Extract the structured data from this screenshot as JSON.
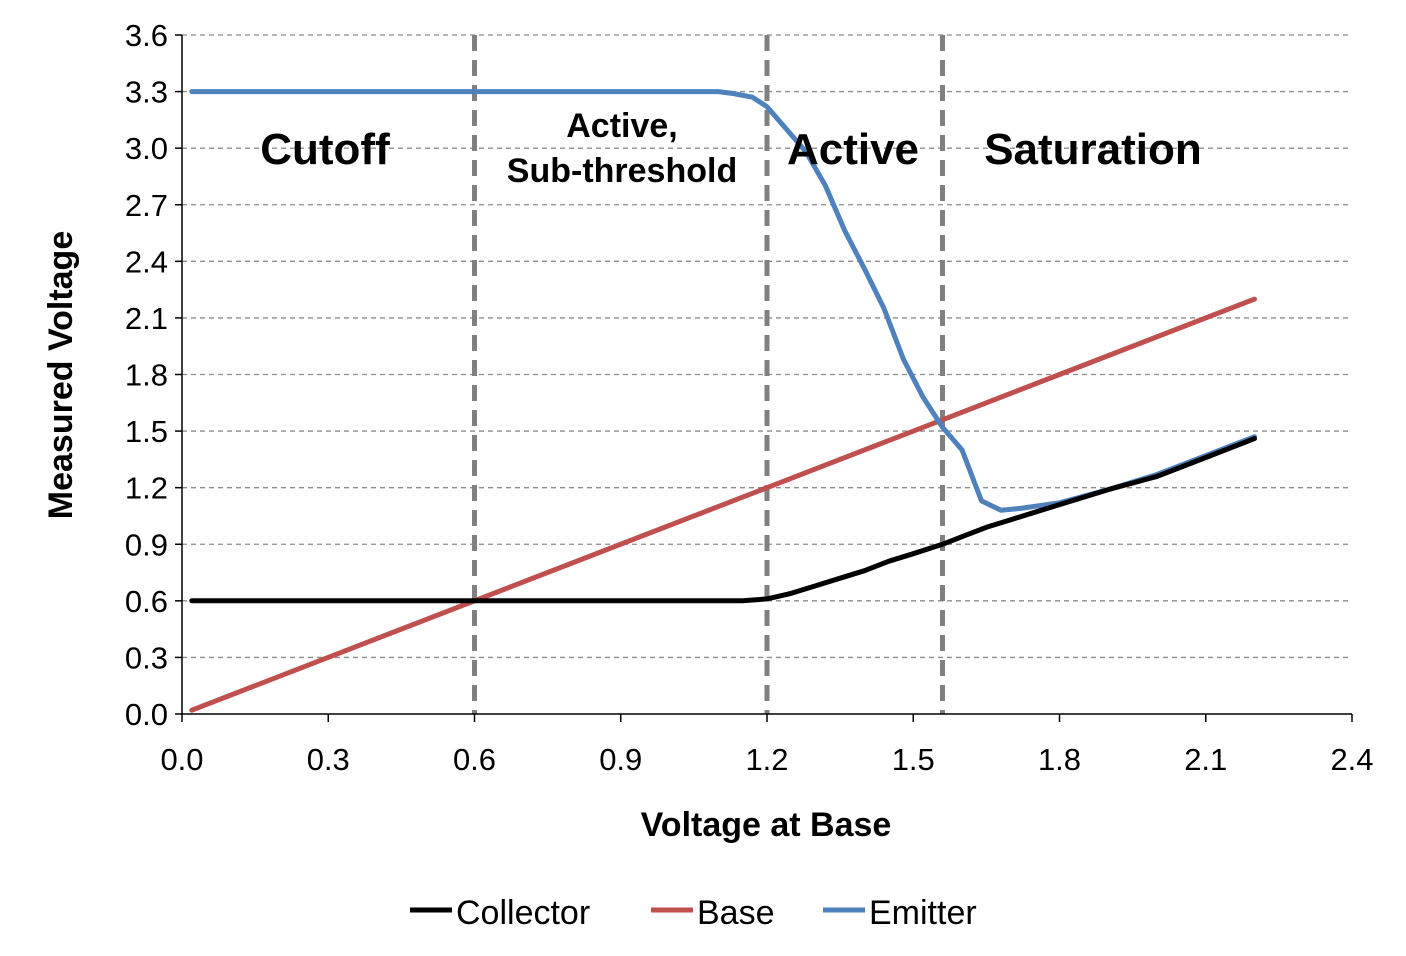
{
  "chart_data": {
    "type": "line",
    "title": "",
    "xlabel": "Voltage at Base",
    "ylabel": "Measured Voltage",
    "xlim": [
      0,
      2.4
    ],
    "ylim": [
      0,
      3.6
    ],
    "x_ticks": [
      "0.0",
      "0.3",
      "0.6",
      "0.9",
      "1.2",
      "1.5",
      "1.8",
      "2.1",
      "2.4"
    ],
    "y_ticks": [
      "0.0",
      "0.3",
      "0.6",
      "0.9",
      "1.2",
      "1.5",
      "1.8",
      "2.1",
      "2.4",
      "2.7",
      "3.0",
      "3.3",
      "3.6"
    ],
    "grid": "horizontal dashed",
    "legend_position": "bottom",
    "colors": {
      "Collector": "#000000",
      "Base": "#c0504d",
      "Emitter": "#4f81bd",
      "boundary": "#808080"
    },
    "series": [
      {
        "name": "Collector",
        "x": [
          0.02,
          0.3,
          0.6,
          0.9,
          1.15,
          1.2,
          1.25,
          1.3,
          1.35,
          1.4,
          1.45,
          1.5,
          1.56,
          1.6,
          1.65,
          1.7,
          1.8,
          1.9,
          2.0,
          2.1,
          2.2
        ],
        "y": [
          0.6,
          0.6,
          0.6,
          0.6,
          0.6,
          0.61,
          0.64,
          0.68,
          0.72,
          0.76,
          0.81,
          0.85,
          0.9,
          0.94,
          0.99,
          1.03,
          1.11,
          1.19,
          1.26,
          1.36,
          1.46
        ]
      },
      {
        "name": "Base",
        "x": [
          0.02,
          0.6,
          1.2,
          1.56,
          1.8,
          2.2
        ],
        "y": [
          0.02,
          0.6,
          1.2,
          1.56,
          1.8,
          2.2
        ]
      },
      {
        "name": "Emitter",
        "x": [
          0.02,
          0.6,
          1.1,
          1.13,
          1.17,
          1.2,
          1.24,
          1.28,
          1.32,
          1.36,
          1.4,
          1.44,
          1.48,
          1.52,
          1.56,
          1.6,
          1.64,
          1.68,
          1.72,
          1.8,
          1.9,
          2.0,
          2.1,
          2.2
        ],
        "y": [
          3.3,
          3.3,
          3.3,
          3.29,
          3.27,
          3.22,
          3.1,
          2.98,
          2.8,
          2.56,
          2.36,
          2.15,
          1.88,
          1.68,
          1.52,
          1.4,
          1.13,
          1.08,
          1.09,
          1.12,
          1.19,
          1.27,
          1.37,
          1.47
        ]
      }
    ],
    "region_boundaries": [
      0.6,
      1.2,
      1.56
    ],
    "region_labels": {
      "cutoff": "Cutoff",
      "active_sub_line1": "Active,",
      "active_sub_line2": "Sub-threshold",
      "active": "Active",
      "saturation": "Saturation"
    }
  }
}
